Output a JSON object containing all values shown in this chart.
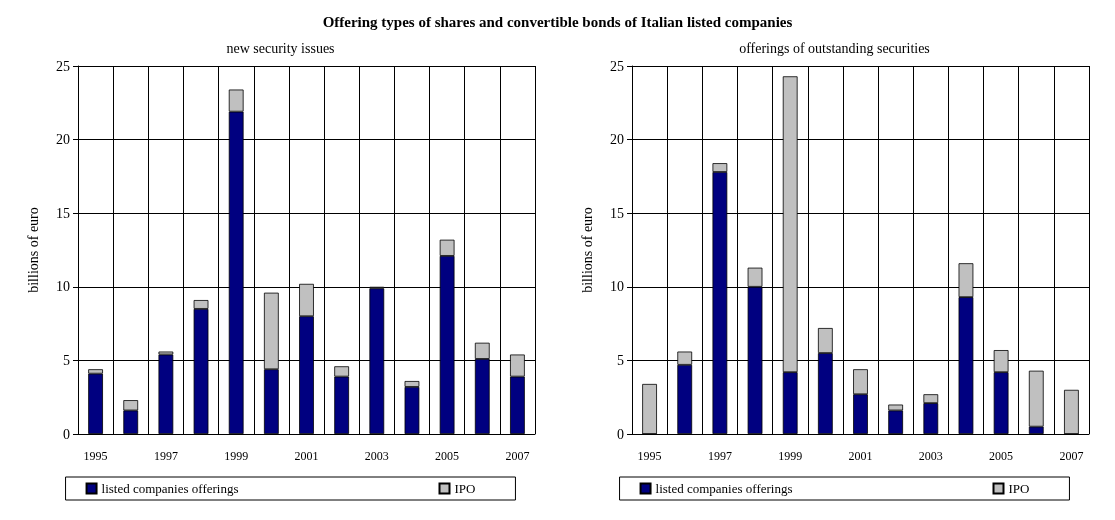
{
  "chart_data": [
    {
      "type": "bar",
      "title": "Offering types of shares and convertible bonds of Italian listed companies",
      "subtitle": "new security issues",
      "ylabel": "billions of euro",
      "categories": [
        "1995",
        null,
        "1997",
        null,
        "1999",
        null,
        "2001",
        null,
        "2003",
        null,
        "2005",
        null,
        "2007"
      ],
      "stacked": true,
      "ylim": [
        0,
        25
      ],
      "yticks": [
        0,
        5,
        10,
        15,
        20,
        25
      ],
      "grid": true,
      "legend": "bottom",
      "series": [
        {
          "name": "listed companies offerings",
          "color": "#000080",
          "values": [
            4.1,
            1.6,
            5.4,
            8.5,
            21.9,
            4.4,
            8.0,
            3.9,
            9.9,
            3.2,
            12.1,
            5.1,
            3.9
          ]
        },
        {
          "name": "IPO",
          "color": "#c0c0c0",
          "values": [
            0.3,
            0.7,
            0.2,
            0.6,
            1.5,
            5.2,
            2.2,
            0.7,
            0.1,
            0.4,
            1.1,
            1.1,
            1.5
          ]
        }
      ]
    },
    {
      "type": "bar",
      "subtitle": "offerings of outstanding securities",
      "ylabel": "billions of euro",
      "categories": [
        "1995",
        null,
        "1997",
        null,
        "1999",
        null,
        "2001",
        null,
        "2003",
        null,
        "2005",
        null,
        "2007"
      ],
      "stacked": true,
      "ylim": [
        0,
        25
      ],
      "yticks": [
        0,
        5,
        10,
        15,
        20,
        25
      ],
      "grid": true,
      "legend": "bottom",
      "series": [
        {
          "name": "listed companies offerings",
          "color": "#000080",
          "values": [
            0,
            4.7,
            17.8,
            10.0,
            4.2,
            5.5,
            2.7,
            1.6,
            2.1,
            9.3,
            4.2,
            0.5,
            0
          ]
        },
        {
          "name": "IPO",
          "color": "#c0c0c0",
          "values": [
            3.4,
            0.9,
            0.6,
            1.3,
            20.1,
            1.7,
            1.7,
            0.4,
            0.6,
            2.3,
            1.5,
            3.8,
            3.0
          ]
        }
      ]
    }
  ]
}
